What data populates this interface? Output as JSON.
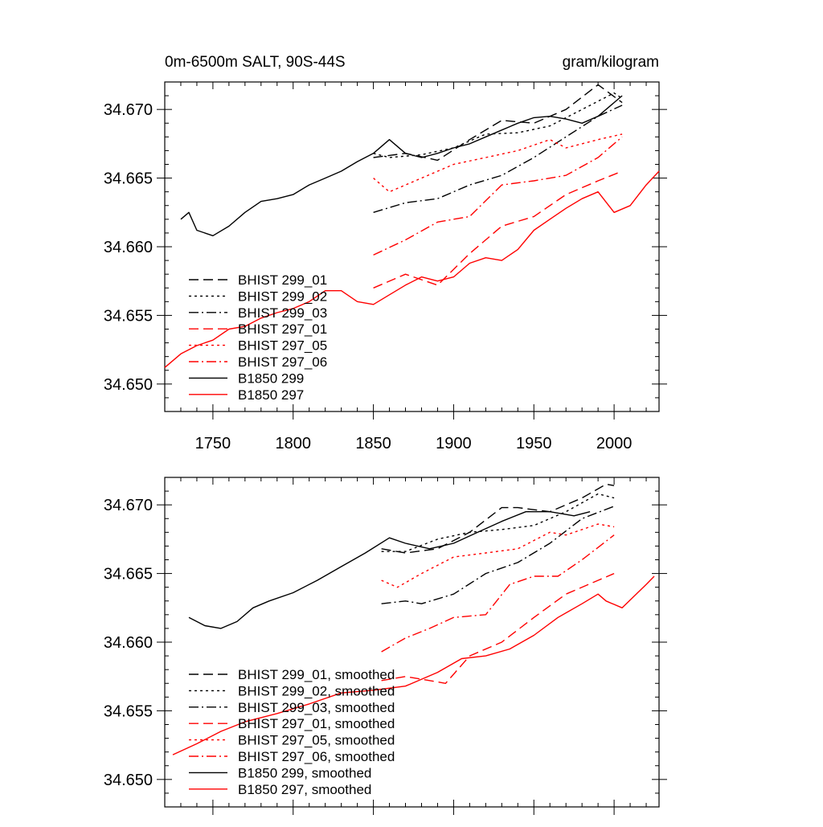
{
  "colors": {
    "black": "#000000",
    "red": "#ff0000"
  },
  "x_ticks": [
    1750,
    1800,
    1850,
    1900,
    1950,
    2000
  ],
  "y_ticks": [
    "34.650",
    "34.655",
    "34.660",
    "34.665",
    "34.670"
  ],
  "chart_data": [
    {
      "type": "line",
      "title_left": "0m-6500m SALT, 90S-44S",
      "title_right": "gram/kilogram",
      "xlim": [
        1720,
        2028
      ],
      "ylim": [
        34.648,
        34.672
      ],
      "show_x_tick_labels": true,
      "series": [
        {
          "name": "BHIST 299_01",
          "color": "#000000",
          "dash": "dash",
          "x": [
            1850,
            1870,
            1890,
            1910,
            1930,
            1950,
            1970,
            1990,
            2005
          ],
          "y": [
            34.6665,
            34.6668,
            34.6663,
            34.6678,
            34.6692,
            34.669,
            34.67,
            34.6718,
            34.6705
          ]
        },
        {
          "name": "BHIST 299_02",
          "color": "#000000",
          "dash": "dot",
          "x": [
            1850,
            1860,
            1880,
            1900,
            1920,
            1940,
            1960,
            1980,
            2000,
            2005
          ],
          "y": [
            34.6668,
            34.6665,
            34.6667,
            34.6672,
            34.6682,
            34.6683,
            34.6688,
            34.67,
            34.6712,
            34.6708
          ]
        },
        {
          "name": "BHIST 299_03",
          "color": "#000000",
          "dash": "dashdot",
          "x": [
            1850,
            1870,
            1890,
            1910,
            1930,
            1950,
            1970,
            1990,
            2005
          ],
          "y": [
            34.6625,
            34.6632,
            34.6635,
            34.6645,
            34.6652,
            34.6665,
            34.668,
            34.6695,
            34.6703
          ]
        },
        {
          "name": "BHIST 297_01",
          "color": "#ff0000",
          "dash": "dash",
          "x": [
            1850,
            1870,
            1890,
            1910,
            1930,
            1950,
            1970,
            1990,
            2005
          ],
          "y": [
            34.657,
            34.658,
            34.6572,
            34.6595,
            34.6615,
            34.6622,
            34.6638,
            34.6648,
            34.6655
          ]
        },
        {
          "name": "BHIST 297_05",
          "color": "#ff0000",
          "dash": "dot",
          "x": [
            1850,
            1860,
            1880,
            1900,
            1920,
            1940,
            1960,
            1970,
            1990,
            2005
          ],
          "y": [
            34.665,
            34.664,
            34.665,
            34.666,
            34.6665,
            34.667,
            34.6678,
            34.6672,
            34.6678,
            34.6682
          ]
        },
        {
          "name": "BHIST 297_06",
          "color": "#ff0000",
          "dash": "dashdot",
          "x": [
            1850,
            1870,
            1890,
            1910,
            1930,
            1950,
            1970,
            1990,
            2005
          ],
          "y": [
            34.6594,
            34.6605,
            34.6618,
            34.6622,
            34.6645,
            34.6648,
            34.6652,
            34.6665,
            34.668
          ]
        },
        {
          "name": "B1850 299",
          "color": "#000000",
          "dash": "solid",
          "x": [
            1730,
            1735,
            1740,
            1750,
            1760,
            1770,
            1780,
            1790,
            1800,
            1810,
            1820,
            1830,
            1840,
            1850,
            1860,
            1870,
            1880,
            1890,
            1900,
            1910,
            1920,
            1930,
            1940,
            1950,
            1960,
            1970,
            1980,
            1990,
            2000,
            2005
          ],
          "y": [
            34.662,
            34.6625,
            34.6612,
            34.6608,
            34.6615,
            34.6625,
            34.6633,
            34.6635,
            34.6638,
            34.6645,
            34.665,
            34.6655,
            34.6662,
            34.6668,
            34.6678,
            34.6668,
            34.6665,
            34.6668,
            34.6672,
            34.6675,
            34.668,
            34.6685,
            34.669,
            34.6694,
            34.6695,
            34.6693,
            34.669,
            34.6695,
            34.6705,
            34.671
          ]
        },
        {
          "name": "B1850 297",
          "color": "#ff0000",
          "dash": "solid",
          "x": [
            1720,
            1730,
            1740,
            1750,
            1760,
            1770,
            1780,
            1790,
            1800,
            1810,
            1820,
            1830,
            1840,
            1850,
            1860,
            1870,
            1880,
            1890,
            1900,
            1910,
            1920,
            1930,
            1940,
            1950,
            1960,
            1970,
            1980,
            1990,
            2000,
            2010,
            2020,
            2028
          ],
          "y": [
            34.6512,
            34.6522,
            34.6528,
            34.6532,
            34.654,
            34.6542,
            34.6548,
            34.6552,
            34.6555,
            34.656,
            34.6568,
            34.6568,
            34.656,
            34.6558,
            34.6565,
            34.6572,
            34.6578,
            34.6575,
            34.6578,
            34.6588,
            34.6592,
            34.659,
            34.6598,
            34.6612,
            34.662,
            34.6628,
            34.6635,
            34.664,
            34.6625,
            34.663,
            34.6645,
            34.6655
          ]
        }
      ],
      "legend": {
        "placement": "lower-left",
        "entries": [
          "BHIST 299_01",
          "BHIST 299_02",
          "BHIST 299_03",
          "BHIST 297_01",
          "BHIST 297_05",
          "BHIST 297_06",
          "B1850 299",
          "B1850 297"
        ]
      }
    },
    {
      "type": "line",
      "title_left": "",
      "title_right": "",
      "xlim": [
        1720,
        2028
      ],
      "ylim": [
        34.648,
        34.672
      ],
      "show_x_tick_labels": false,
      "series": [
        {
          "name": "BHIST 299_01, smoothed",
          "color": "#000000",
          "dash": "dash",
          "x": [
            1855,
            1870,
            1890,
            1910,
            1930,
            1940,
            1960,
            1980,
            1995,
            2000
          ],
          "y": [
            34.6668,
            34.6665,
            34.6668,
            34.668,
            34.6698,
            34.6698,
            34.6695,
            34.6705,
            34.6715,
            34.6714
          ]
        },
        {
          "name": "BHIST 299_02, smoothed",
          "color": "#000000",
          "dash": "dot",
          "x": [
            1855,
            1870,
            1890,
            1910,
            1930,
            1950,
            1970,
            1990,
            2000
          ],
          "y": [
            34.6666,
            34.6666,
            34.6675,
            34.668,
            34.6682,
            34.6685,
            34.6695,
            34.6708,
            34.6705
          ]
        },
        {
          "name": "BHIST 299_03, smoothed",
          "color": "#000000",
          "dash": "dashdot",
          "x": [
            1855,
            1870,
            1880,
            1900,
            1920,
            1940,
            1960,
            1980,
            2000
          ],
          "y": [
            34.6628,
            34.663,
            34.6628,
            34.6635,
            34.665,
            34.6658,
            34.6672,
            34.669,
            34.6699
          ]
        },
        {
          "name": "BHIST 297_01, smoothed",
          "color": "#ff0000",
          "dash": "dash",
          "x": [
            1855,
            1870,
            1885,
            1895,
            1910,
            1930,
            1950,
            1970,
            1990,
            2000
          ],
          "y": [
            34.6572,
            34.6575,
            34.6572,
            34.657,
            34.659,
            34.66,
            34.6618,
            34.6635,
            34.6645,
            34.665
          ]
        },
        {
          "name": "BHIST 297_05, smoothed",
          "color": "#ff0000",
          "dash": "dot",
          "x": [
            1855,
            1865,
            1880,
            1900,
            1920,
            1940,
            1960,
            1970,
            1990,
            2000
          ],
          "y": [
            34.6645,
            34.664,
            34.665,
            34.6662,
            34.6665,
            34.6668,
            34.668,
            34.6678,
            34.6686,
            34.6684
          ]
        },
        {
          "name": "BHIST 297_06, smoothed",
          "color": "#ff0000",
          "dash": "dashdot",
          "x": [
            1855,
            1870,
            1885,
            1900,
            1920,
            1935,
            1950,
            1965,
            1980,
            2000
          ],
          "y": [
            34.6593,
            34.6603,
            34.661,
            34.6618,
            34.662,
            34.6642,
            34.6648,
            34.6648,
            34.666,
            34.6678
          ]
        },
        {
          "name": "B1850 299, smoothed",
          "color": "#000000",
          "dash": "solid",
          "x": [
            1735,
            1745,
            1755,
            1765,
            1775,
            1785,
            1800,
            1815,
            1830,
            1845,
            1860,
            1870,
            1885,
            1900,
            1915,
            1930,
            1945,
            1960,
            1975,
            1985
          ],
          "y": [
            34.6618,
            34.6612,
            34.661,
            34.6615,
            34.6625,
            34.663,
            34.6636,
            34.6645,
            34.6655,
            34.6665,
            34.6676,
            34.6672,
            34.6668,
            34.6672,
            34.668,
            34.6688,
            34.6695,
            34.6695,
            34.6692,
            34.6695
          ]
        },
        {
          "name": "B1850 297, smoothed",
          "color": "#ff0000",
          "dash": "solid",
          "x": [
            1725,
            1740,
            1755,
            1770,
            1790,
            1810,
            1830,
            1850,
            1870,
            1890,
            1905,
            1920,
            1935,
            1950,
            1965,
            1980,
            1990,
            1995,
            2005,
            2020,
            2025
          ],
          "y": [
            34.6518,
            34.6526,
            34.6535,
            34.6542,
            34.6548,
            34.6555,
            34.6563,
            34.6565,
            34.6568,
            34.6578,
            34.6588,
            34.659,
            34.6595,
            34.6605,
            34.6618,
            34.6628,
            34.6635,
            34.663,
            34.6625,
            34.6642,
            34.6648
          ]
        }
      ],
      "legend": {
        "placement": "lower-left",
        "entries": [
          "BHIST 299_01, smoothed",
          "BHIST 299_02, smoothed",
          "BHIST 299_03, smoothed",
          "BHIST 297_01, smoothed",
          "BHIST 297_05, smoothed",
          "BHIST 297_06, smoothed",
          "B1850 299, smoothed",
          "B1850 297, smoothed"
        ]
      }
    }
  ]
}
